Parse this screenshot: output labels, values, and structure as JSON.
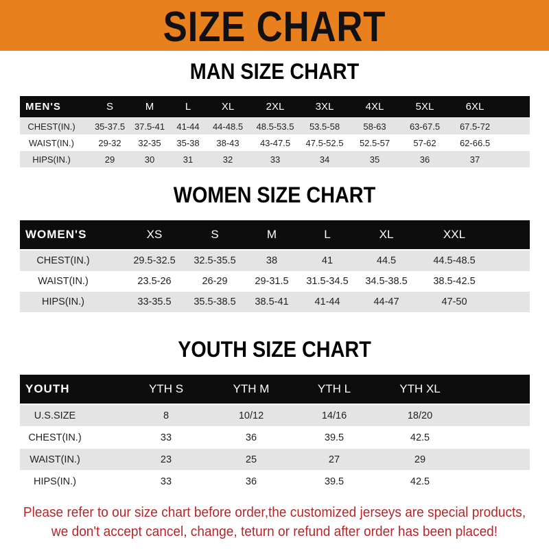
{
  "banner": {
    "title": "SIZE CHART",
    "color": "#e9801e"
  },
  "tables": [
    {
      "title": "MAN SIZE CHART",
      "header": [
        "MEN'S",
        "S",
        "M",
        "L",
        "XL",
        "2XL",
        "3XL",
        "4XL",
        "5XL",
        "6XL"
      ],
      "rows": [
        [
          "CHEST(IN.)",
          "35-37.5",
          "37.5-41",
          "41-44",
          "44-48.5",
          "48.5-53.5",
          "53.5-58",
          "58-63",
          "63-67.5",
          "67.5-72"
        ],
        [
          "WAIST(IN.)",
          "29-32",
          "32-35",
          "35-38",
          "38-43",
          "43-47.5",
          "47.5-52.5",
          "52.5-57",
          "57-62",
          "62-66.5"
        ],
        [
          "HIPS(IN.)",
          "29",
          "30",
          "31",
          "32",
          "33",
          "34",
          "35",
          "36",
          "37"
        ]
      ]
    },
    {
      "title": "WOMEN SIZE CHART",
      "header": [
        "WOMEN'S",
        "XS",
        "S",
        "M",
        "L",
        "XL",
        "XXL"
      ],
      "rows": [
        [
          "CHEST(IN.)",
          "29.5-32.5",
          "32.5-35.5",
          "38",
          "41",
          "44.5",
          "44.5-48.5"
        ],
        [
          "WAIST(IN.)",
          "23.5-26",
          "26-29",
          "29-31.5",
          "31.5-34.5",
          "34.5-38.5",
          "38.5-42.5"
        ],
        [
          "HIPS(IN.)",
          "33-35.5",
          "35.5-38.5",
          "38.5-41",
          "41-44",
          "44-47",
          "47-50"
        ]
      ]
    },
    {
      "title": "YOUTH SIZE CHART",
      "header": [
        "YOUTH",
        "YTH S",
        "YTH M",
        "YTH L",
        "YTH XL"
      ],
      "rows": [
        [
          "U.S.SIZE",
          "8",
          "10/12",
          "14/16",
          "18/20"
        ],
        [
          "CHEST(IN.)",
          "33",
          "36",
          "39.5",
          "42.5"
        ],
        [
          "WAIST(IN.)",
          "23",
          "25",
          "27",
          "29"
        ],
        [
          "HIPS(IN.)",
          "33",
          "36",
          "39.5",
          "42.5"
        ]
      ]
    }
  ],
  "note": {
    "line1": "Please refer to our size chart before order,the customized jerseys are special products,",
    "line2": "we don't accept cancel, change, teturn or refund after order has been placed!",
    "color": "#b5262a"
  }
}
